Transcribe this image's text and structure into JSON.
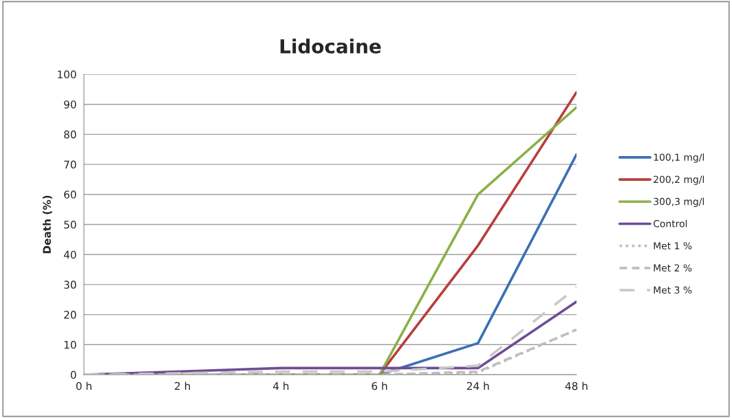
{
  "chart_data": {
    "type": "line",
    "title": "Lidocaine",
    "ylabel": "Death (%)",
    "categories": [
      "0 h",
      "2 h",
      "4 h",
      "6 h",
      "24 h",
      "48 h"
    ],
    "series": [
      {
        "name": "100,1 mg/l",
        "color": "#3b70b3",
        "values": [
          0,
          0,
          0,
          0,
          10.5,
          73.3
        ]
      },
      {
        "name": "200,2 mg/l",
        "color": "#b93d3a",
        "values": [
          null,
          null,
          0,
          0,
          43,
          94
        ]
      },
      {
        "name": "300,3 mg/l",
        "color": "#8bb046",
        "values": [
          0,
          0,
          0,
          0,
          60,
          89
        ]
      },
      {
        "name": "Control",
        "color": "#6f4c96",
        "values": [
          0,
          1.1,
          2.2,
          2.2,
          2.2,
          24.3
        ]
      },
      {
        "name": "Met 1 %",
        "color": "#bfbfbf",
        "line_style": "dotted",
        "values": [
          0,
          0,
          0,
          0,
          0.7,
          15
        ]
      },
      {
        "name": "Met 2 %",
        "color": "#bfbfbf",
        "line_style": "dashed",
        "values": [
          0,
          0,
          0,
          0,
          1,
          15
        ]
      },
      {
        "name": "Met 3 %",
        "color": "#c8c8c8",
        "line_style": "longdash",
        "values": [
          0,
          0.5,
          1,
          1,
          3,
          29
        ]
      }
    ],
    "ylim": [
      0,
      100
    ],
    "yticks": [
      0,
      10,
      20,
      30,
      40,
      50,
      60,
      70,
      80,
      90,
      100
    ],
    "grid": "y",
    "legend": "right",
    "marker": "none"
  }
}
